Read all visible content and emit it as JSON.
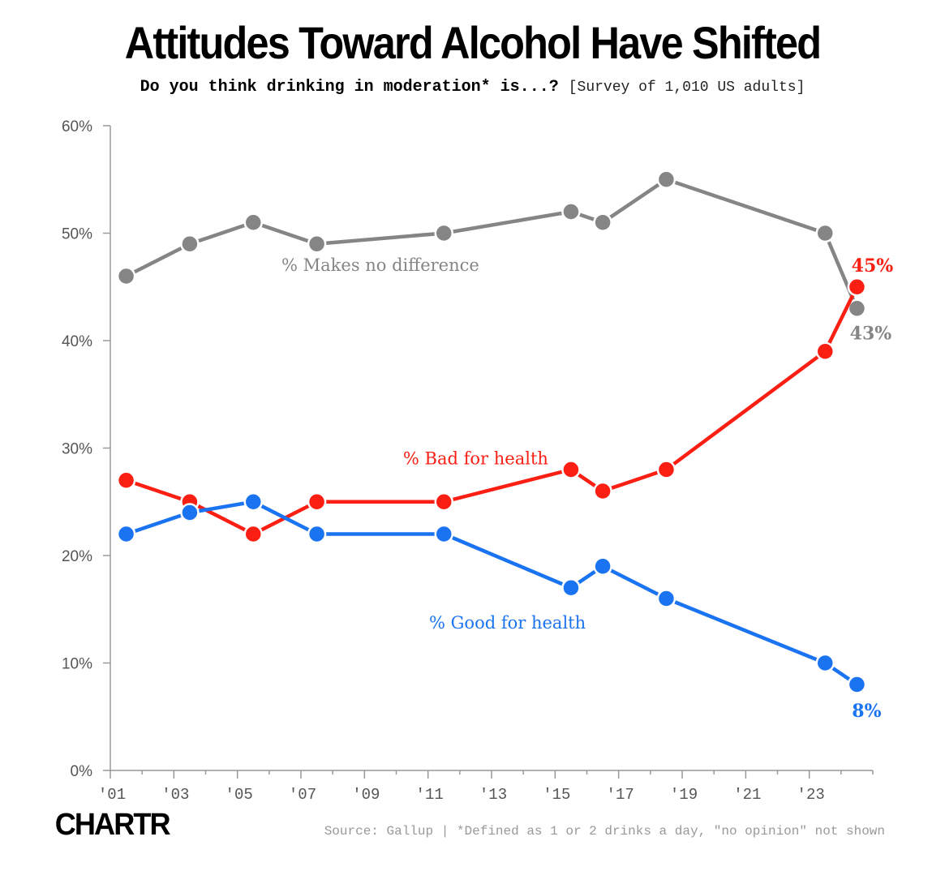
{
  "title": "Attitudes Toward Alcohol Have Shifted",
  "subtitle_question": "Do you think drinking in moderation* is...?",
  "subtitle_note": "[Survey of 1,010 US adults]",
  "logo": "CHARTR",
  "source": "Source: Gallup | *Defined as 1 or 2 drinks a day, \"no opinion\" not shown",
  "chart_data": {
    "type": "line",
    "xlim": [
      2001,
      2025
    ],
    "ylim": [
      0,
      60
    ],
    "grid": false,
    "x_ticks": [
      2001,
      2003,
      2005,
      2007,
      2009,
      2011,
      2013,
      2015,
      2017,
      2019,
      2021,
      2023
    ],
    "x_tick_labels": [
      "'01",
      "'03",
      "'05",
      "'07",
      "'09",
      "'11",
      "'13",
      "'15",
      "'17",
      "'19",
      "'21",
      "'23"
    ],
    "y_ticks": [
      0,
      10,
      20,
      30,
      40,
      50,
      60
    ],
    "y_tick_labels": [
      "0%",
      "10%",
      "20%",
      "30%",
      "40%",
      "50%",
      "60%"
    ],
    "series": [
      {
        "name": "% Makes no difference",
        "color": "#858585",
        "x": [
          2001.5,
          2003.5,
          2005.5,
          2007.5,
          2011.5,
          2015.5,
          2016.5,
          2018.5,
          2023.5,
          2024.5
        ],
        "y": [
          46,
          49,
          51,
          49,
          50,
          52,
          51,
          55,
          50,
          43
        ],
        "end_label": "43%"
      },
      {
        "name": "% Bad for health",
        "color": "#fa1e13",
        "x": [
          2001.5,
          2003.5,
          2005.5,
          2007.5,
          2011.5,
          2015.5,
          2016.5,
          2018.5,
          2023.5,
          2024.5
        ],
        "y": [
          27,
          25,
          22,
          25,
          25,
          28,
          26,
          28,
          39,
          45
        ],
        "end_label": "45%"
      },
      {
        "name": "% Good for health",
        "color": "#1a73f0",
        "x": [
          2001.5,
          2003.5,
          2005.5,
          2007.5,
          2011.5,
          2015.5,
          2016.5,
          2018.5,
          2023.5,
          2024.5
        ],
        "y": [
          22,
          24,
          25,
          22,
          22,
          17,
          19,
          16,
          10,
          8
        ],
        "end_label": "8%"
      }
    ]
  }
}
